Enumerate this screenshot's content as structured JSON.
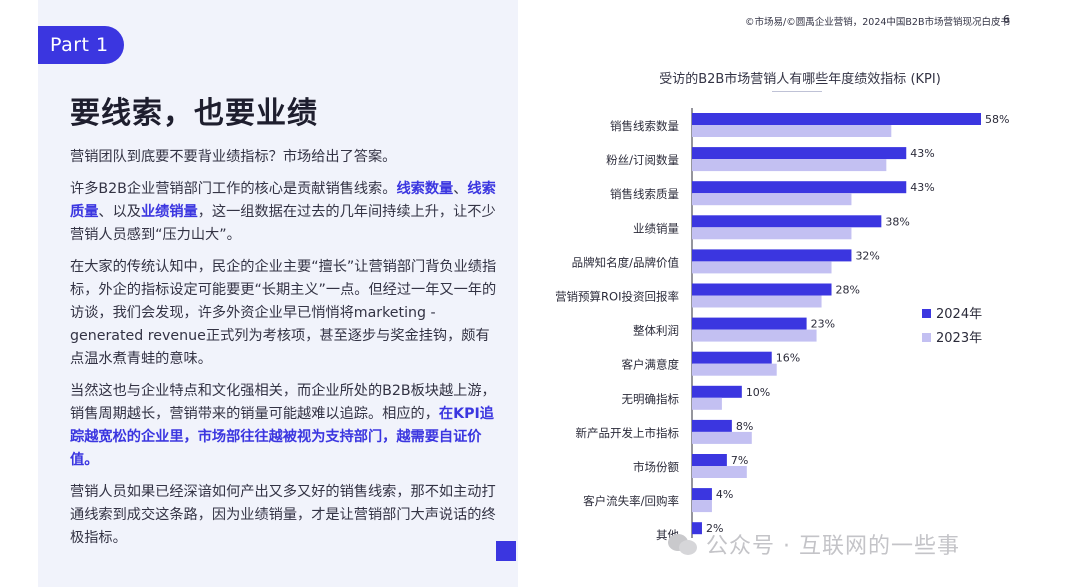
{
  "header": {
    "note": "©市场易/©圆禹企业营销，2024中国B2B市场营销现况白皮书",
    "page_number": "6"
  },
  "left": {
    "part_tag": "Part 1",
    "heading": "要线索，也要业绩",
    "p1": "营销团队到底要不要背业绩指标？市场给出了答案。",
    "p2_a": "许多B2B企业营销部门工作的核心是贡献销售线索。",
    "p2_b": "线索数量",
    "p2_c": "、",
    "p2_d": "线索质量",
    "p2_e": "、以及",
    "p2_f": "业绩销量",
    "p2_g": "，这一组数据在过去的几年间持续上升，让不少营销人员感到“压力山大”。",
    "p3": "在大家的传统认知中，民企的企业主要“擅长”让营销部门背负业绩指标，外企的指标设定可能要更“长期主义”一点。但经过一年又一年的访谈，我们会发现，许多外资企业早已悄悄将marketing -generated revenue正式列为考核项，甚至逐步与奖金挂钩，颇有点温水煮青蛙的意味。",
    "p4_a": "当然这也与企业特点和文化强相关，而企业所处的B2B板块越上游，销售周期越长，营销带来的销量可能越难以追踪。相应的，",
    "p4_b": "在KPI追踪越宽松的企业里，市场部往往越被视为支持部门，越需要自证价值。",
    "p5": "营销人员如果已经深谙如何产出又多又好的销售线索，那不如主动打通线索到成交这条路，因为业绩销量，才是让营销部门大声说话的终极指标。"
  },
  "watermark": "公众号 · 互联网的一些事",
  "colors": {
    "accent": "#3b36e0",
    "series_2024": "#3b36e0",
    "series_2023": "#c3c0f2",
    "panel_bg": "#f1f3fb"
  },
  "chart_data": {
    "type": "bar",
    "orientation": "horizontal",
    "title": "受访的B2B市场营销人有哪些年度绩效指标 (KPI)",
    "categories": [
      "销售线索数量",
      "粉丝/订阅数量",
      "销售线索质量",
      "业绩销量",
      "品牌知名度/品牌价值",
      "营销预算ROI投资回报率",
      "整体利润",
      "客户满意度",
      "无明确指标",
      "新产品开发上市指标",
      "市场份额",
      "客户流失率/回购率",
      "其他"
    ],
    "series": [
      {
        "name": "2024年",
        "values": [
          58,
          43,
          43,
          38,
          32,
          28,
          23,
          16,
          10,
          8,
          7,
          4,
          2
        ],
        "labels": [
          "58%",
          "43%",
          "43%",
          "38%",
          "32%",
          "28%",
          "23%",
          "16%",
          "10%",
          "8%",
          "7%",
          "4%",
          "2%"
        ]
      },
      {
        "name": "2023年",
        "values": [
          40,
          39,
          32,
          32,
          28,
          26,
          25,
          17,
          6,
          12,
          11,
          4,
          0
        ]
      }
    ],
    "xlim": [
      0,
      60
    ],
    "legend_position": "right",
    "grid": false
  }
}
